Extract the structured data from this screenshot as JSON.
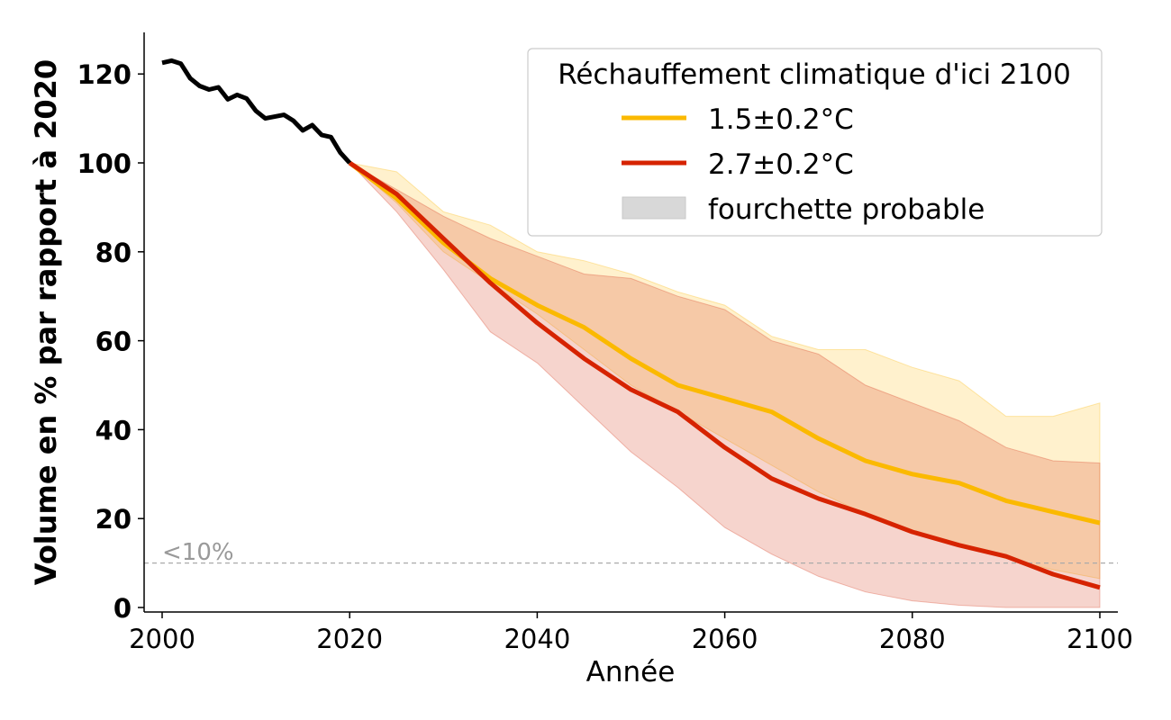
{
  "chart_data": {
    "type": "line",
    "xlabel": "Année",
    "ylabel": "Volume en % par rapport à 2020",
    "xlim": [
      1998,
      2102
    ],
    "ylim": [
      -1,
      129
    ],
    "xticks": [
      2000,
      2020,
      2040,
      2060,
      2080,
      2100
    ],
    "yticks": [
      0,
      20,
      40,
      60,
      80,
      100,
      120
    ],
    "grid": false,
    "reference_line": {
      "y": 10,
      "label": "<10%"
    },
    "legend": {
      "title": "Réchauffement climatique d'ici 2100",
      "placement": "top-right",
      "entries": [
        "1.5±0.2°C",
        "2.7±0.2°C",
        "fourchette probable"
      ]
    },
    "historical": {
      "color": "#000000",
      "x": [
        2000,
        2001,
        2002,
        2003,
        2004,
        2005,
        2006,
        2007,
        2008,
        2009,
        2010,
        2011,
        2012,
        2013,
        2014,
        2015,
        2016,
        2017,
        2018,
        2019,
        2020
      ],
      "y": [
        122.5,
        123,
        122.3,
        119,
        117.3,
        116.5,
        117,
        114.3,
        115.3,
        114.5,
        111.7,
        110,
        110.4,
        110.8,
        109.5,
        107.3,
        108.5,
        106.3,
        105.8,
        102.3,
        100
      ]
    },
    "series": [
      {
        "name": "1.5±0.2°C",
        "color": "#fbb900",
        "x": [
          2020,
          2025,
          2030,
          2035,
          2040,
          2045,
          2050,
          2055,
          2060,
          2065,
          2070,
          2075,
          2080,
          2085,
          2090,
          2095,
          2100
        ],
        "median": [
          100,
          92,
          82,
          74,
          68,
          63,
          56,
          50,
          47,
          44,
          38,
          33,
          30,
          28,
          24,
          21.5,
          19
        ],
        "lower": [
          100,
          91,
          80,
          73,
          66,
          58,
          50,
          44,
          38,
          32,
          26,
          21,
          17,
          14,
          11,
          8.5,
          6.5
        ],
        "upper": [
          100,
          98,
          89,
          86,
          80,
          78,
          75,
          71,
          68,
          61,
          58,
          58,
          54,
          51,
          43,
          43,
          46
        ]
      },
      {
        "name": "2.7±0.2°C",
        "color": "#d62300",
        "x": [
          2020,
          2025,
          2030,
          2035,
          2040,
          2045,
          2050,
          2055,
          2060,
          2065,
          2070,
          2075,
          2080,
          2085,
          2090,
          2095,
          2100
        ],
        "median": [
          100,
          93,
          83,
          73,
          64,
          56,
          49,
          44,
          36,
          29,
          24.5,
          21,
          17,
          14,
          11.5,
          7.5,
          4.5
        ],
        "lower": [
          100,
          89,
          76,
          62,
          55,
          45,
          35,
          27,
          18,
          12,
          7,
          3.5,
          1.5,
          0.5,
          0,
          0,
          0
        ],
        "upper": [
          100,
          94,
          88,
          83,
          79,
          75,
          74,
          70,
          67,
          60,
          57,
          50,
          46,
          42,
          36,
          33,
          32.5
        ]
      }
    ]
  }
}
